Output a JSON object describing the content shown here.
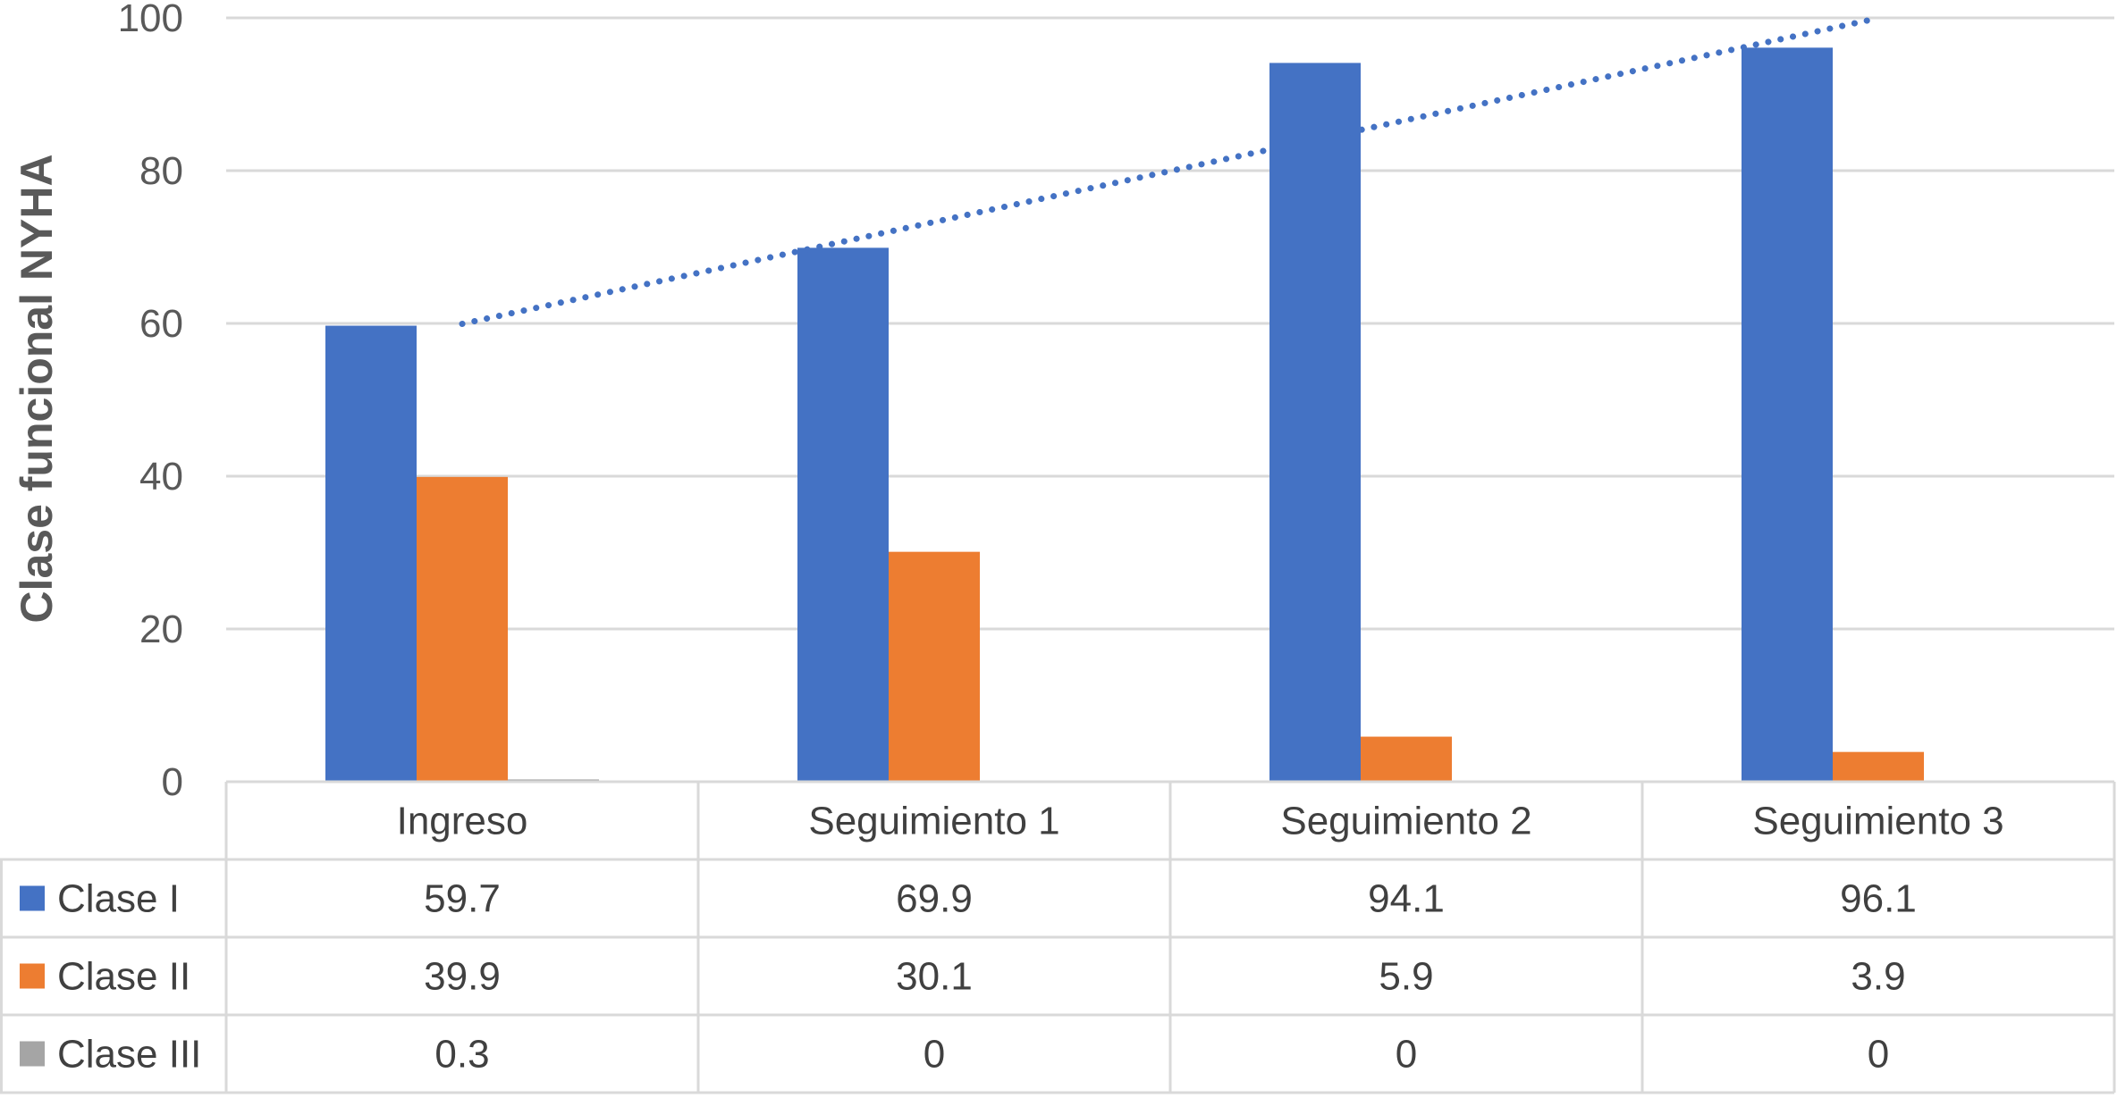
{
  "chart_data": {
    "type": "bar",
    "title": "",
    "xlabel": "",
    "ylabel": "Clase funcional NYHA",
    "ylim": [
      0,
      100
    ],
    "yticks": [
      0,
      20,
      40,
      60,
      80,
      100
    ],
    "grid": true,
    "legend_placement": "data-table",
    "categories": [
      "Ingreso",
      "Seguimiento 1",
      "Seguimiento 2",
      "Seguimiento 3"
    ],
    "series": [
      {
        "name": "Clase I",
        "values": [
          59.7,
          69.9,
          94.1,
          96.1
        ],
        "value_labels": [
          "59.7",
          "69.9",
          "94.1",
          "96.1"
        ],
        "color": "#4472C4"
      },
      {
        "name": "Clase II",
        "values": [
          39.9,
          30.1,
          5.9,
          3.9
        ],
        "value_labels": [
          "39.9",
          "30.1",
          "5.9",
          "3.9"
        ],
        "color": "#ED7D31"
      },
      {
        "name": "Clase III",
        "values": [
          0.3,
          0,
          0,
          0
        ],
        "value_labels": [
          "0.3",
          "0",
          "0",
          "0"
        ],
        "color": "#A5A5A5"
      }
    ],
    "trendline": {
      "series": "Clase I",
      "type": "linear",
      "style": "dotted",
      "color": "#4472C4"
    }
  }
}
